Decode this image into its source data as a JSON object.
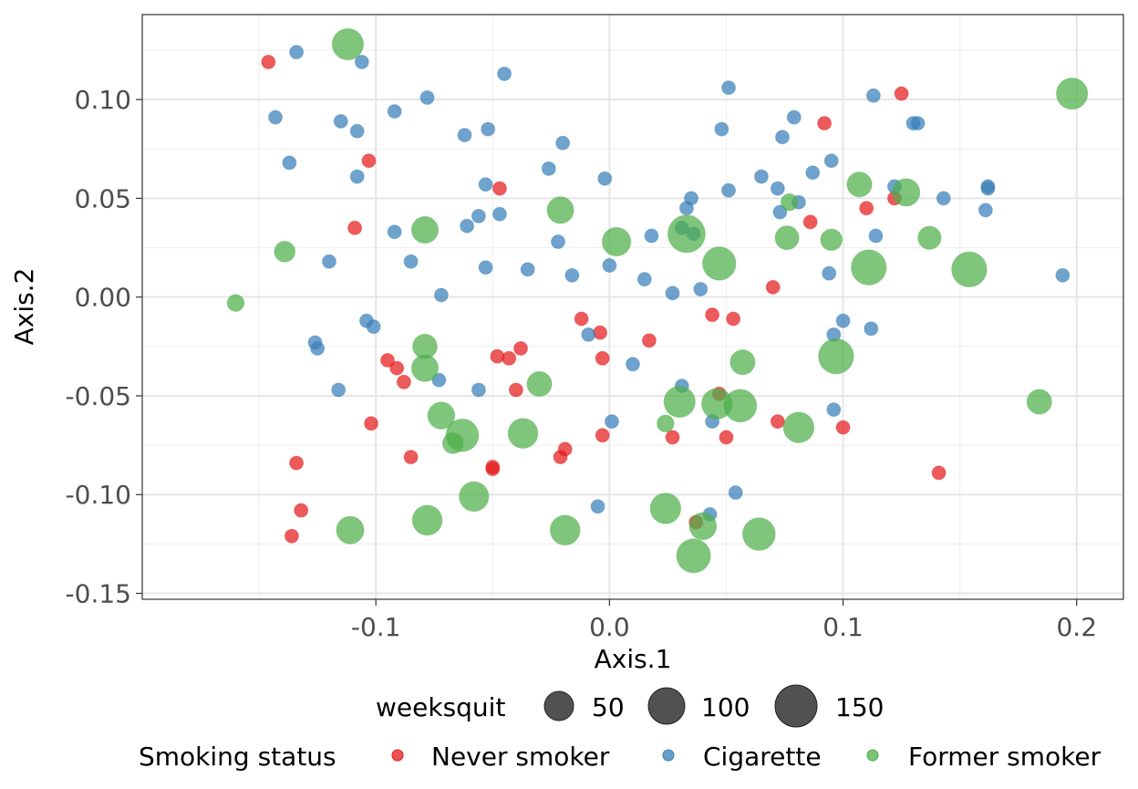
{
  "chart_data": {
    "type": "scatter",
    "xlabel": "Axis.1",
    "ylabel": "Axis.2",
    "xlim": [
      -0.2,
      0.22
    ],
    "ylim": [
      -0.153,
      0.143
    ],
    "x_ticks": [
      -0.1,
      0.0,
      0.1,
      0.2
    ],
    "x_tick_labels": [
      "-0.1",
      "0.0",
      "0.1",
      "0.2"
    ],
    "y_ticks": [
      -0.15,
      -0.1,
      -0.05,
      0.0,
      0.05,
      0.1
    ],
    "y_tick_labels": [
      "-0.15",
      "-0.10",
      "-0.05",
      "0.00",
      "0.05",
      "0.10"
    ],
    "grid": true,
    "legend_position": "bottom",
    "size_legend": {
      "title": "weeksquit",
      "entries": [
        {
          "label": "50",
          "value": 50
        },
        {
          "label": "100",
          "value": 100
        },
        {
          "label": "150",
          "value": 150
        }
      ]
    },
    "color_legend": {
      "title": "Smoking status",
      "entries": [
        {
          "label": "Never smoker",
          "color": "#e41a1c"
        },
        {
          "label": "Cigarette",
          "color": "#377eb8"
        },
        {
          "label": "Former smoker",
          "color": "#4daf4a"
        }
      ]
    },
    "series": [
      {
        "name": "Never smoker",
        "color": "#e41a1c",
        "points": [
          [
            -0.146,
            0.119
          ],
          [
            -0.103,
            0.069
          ],
          [
            -0.109,
            0.035
          ],
          [
            -0.047,
            0.055
          ],
          [
            -0.134,
            -0.084
          ],
          [
            -0.132,
            -0.108
          ],
          [
            -0.136,
            -0.121
          ],
          [
            -0.102,
            -0.064
          ],
          [
            -0.095,
            -0.032
          ],
          [
            -0.091,
            -0.036
          ],
          [
            -0.088,
            -0.043
          ],
          [
            -0.085,
            -0.081
          ],
          [
            -0.05,
            -0.086
          ],
          [
            -0.05,
            -0.087
          ],
          [
            -0.048,
            -0.03
          ],
          [
            -0.043,
            -0.031
          ],
          [
            -0.04,
            -0.047
          ],
          [
            -0.038,
            -0.026
          ],
          [
            -0.021,
            -0.081
          ],
          [
            -0.019,
            -0.077
          ],
          [
            -0.012,
            -0.011
          ],
          [
            -0.004,
            -0.018
          ],
          [
            -0.003,
            -0.031
          ],
          [
            -0.003,
            -0.07
          ],
          [
            0.017,
            -0.022
          ],
          [
            0.027,
            -0.071
          ],
          [
            0.037,
            -0.114
          ],
          [
            0.044,
            -0.009
          ],
          [
            0.047,
            -0.049
          ],
          [
            0.05,
            -0.071
          ],
          [
            0.053,
            -0.011
          ],
          [
            0.07,
            0.005
          ],
          [
            0.072,
            -0.063
          ],
          [
            0.086,
            0.038
          ],
          [
            0.092,
            0.088
          ],
          [
            0.1,
            -0.066
          ],
          [
            0.11,
            0.045
          ],
          [
            0.122,
            0.05
          ],
          [
            0.125,
            0.103
          ],
          [
            0.141,
            -0.089
          ]
        ]
      },
      {
        "name": "Cigarette",
        "color": "#377eb8",
        "points": [
          [
            -0.134,
            0.124
          ],
          [
            -0.106,
            0.119
          ],
          [
            -0.045,
            0.113
          ],
          [
            -0.143,
            0.091
          ],
          [
            -0.115,
            0.089
          ],
          [
            -0.108,
            0.084
          ],
          [
            -0.092,
            0.094
          ],
          [
            -0.078,
            0.101
          ],
          [
            -0.062,
            0.082
          ],
          [
            -0.052,
            0.085
          ],
          [
            -0.02,
            0.078
          ],
          [
            -0.137,
            0.068
          ],
          [
            -0.108,
            0.061
          ],
          [
            -0.026,
            0.065
          ],
          [
            -0.002,
            0.06
          ],
          [
            -0.053,
            0.057
          ],
          [
            -0.056,
            0.041
          ],
          [
            -0.047,
            0.042
          ],
          [
            -0.061,
            0.036
          ],
          [
            -0.092,
            0.033
          ],
          [
            -0.022,
            0.028
          ],
          [
            -0.12,
            0.018
          ],
          [
            -0.085,
            0.018
          ],
          [
            -0.053,
            0.015
          ],
          [
            -0.035,
            0.014
          ],
          [
            -0.016,
            0.011
          ],
          [
            0.0,
            0.016
          ],
          [
            -0.072,
            0.001
          ],
          [
            -0.104,
            -0.012
          ],
          [
            -0.101,
            -0.015
          ],
          [
            -0.126,
            -0.023
          ],
          [
            -0.125,
            -0.026
          ],
          [
            -0.116,
            -0.047
          ],
          [
            -0.073,
            -0.042
          ],
          [
            -0.056,
            -0.047
          ],
          [
            -0.009,
            -0.019
          ],
          [
            0.01,
            -0.034
          ],
          [
            0.001,
            -0.063
          ],
          [
            -0.005,
            -0.106
          ],
          [
            0.051,
            0.106
          ],
          [
            0.048,
            0.085
          ],
          [
            0.079,
            0.091
          ],
          [
            0.074,
            0.081
          ],
          [
            0.113,
            0.102
          ],
          [
            0.13,
            0.088
          ],
          [
            0.132,
            0.088
          ],
          [
            0.065,
            0.061
          ],
          [
            0.051,
            0.054
          ],
          [
            0.072,
            0.055
          ],
          [
            0.087,
            0.063
          ],
          [
            0.095,
            0.069
          ],
          [
            0.035,
            0.05
          ],
          [
            0.033,
            0.045
          ],
          [
            0.031,
            0.035
          ],
          [
            0.036,
            0.032
          ],
          [
            0.018,
            0.031
          ],
          [
            0.073,
            0.043
          ],
          [
            0.081,
            0.048
          ],
          [
            0.122,
            0.056
          ],
          [
            0.143,
            0.05
          ],
          [
            0.162,
            0.056
          ],
          [
            0.162,
            0.055
          ],
          [
            0.161,
            0.044
          ],
          [
            0.114,
            0.031
          ],
          [
            0.015,
            0.009
          ],
          [
            0.027,
            0.002
          ],
          [
            0.039,
            0.004
          ],
          [
            0.094,
            0.012
          ],
          [
            0.1,
            -0.012
          ],
          [
            0.096,
            -0.019
          ],
          [
            0.112,
            -0.016
          ],
          [
            0.194,
            0.011
          ],
          [
            0.031,
            -0.045
          ],
          [
            0.044,
            -0.063
          ],
          [
            0.096,
            -0.057
          ],
          [
            0.054,
            -0.099
          ],
          [
            0.043,
            -0.11
          ]
        ]
      },
      {
        "name": "Former smoker",
        "color": "#4daf4a",
        "points": [
          [
            -0.112,
            0.128,
            80
          ],
          [
            0.198,
            0.103,
            80
          ],
          [
            -0.16,
            -0.003,
            10
          ],
          [
            -0.139,
            0.023,
            22
          ],
          [
            -0.079,
            0.034,
            50
          ],
          [
            -0.021,
            0.044,
            50
          ],
          [
            0.003,
            0.028,
            62
          ],
          [
            0.033,
            0.032,
            130
          ],
          [
            0.047,
            0.017,
            95
          ],
          [
            0.077,
            0.048,
            10
          ],
          [
            0.076,
            0.03,
            35
          ],
          [
            0.095,
            0.029,
            25
          ],
          [
            0.107,
            0.057,
            40
          ],
          [
            0.127,
            0.053,
            55
          ],
          [
            0.111,
            0.015,
            110
          ],
          [
            0.137,
            0.03,
            32
          ],
          [
            0.154,
            0.014,
            110
          ],
          [
            -0.079,
            -0.025,
            38
          ],
          [
            -0.079,
            -0.036,
            50
          ],
          [
            -0.072,
            -0.06,
            52
          ],
          [
            -0.063,
            -0.07,
            90
          ],
          [
            -0.067,
            -0.074,
            22
          ],
          [
            -0.03,
            -0.044,
            40
          ],
          [
            -0.037,
            -0.069,
            70
          ],
          [
            -0.058,
            -0.101,
            68
          ],
          [
            -0.078,
            -0.113,
            70
          ],
          [
            -0.111,
            -0.118,
            55
          ],
          [
            -0.019,
            -0.118,
            70
          ],
          [
            0.024,
            -0.064,
            10
          ],
          [
            0.03,
            -0.053,
            80
          ],
          [
            0.046,
            -0.054,
            75
          ],
          [
            0.056,
            -0.055,
            90
          ],
          [
            0.057,
            -0.033,
            40
          ],
          [
            0.081,
            -0.066,
            75
          ],
          [
            0.097,
            -0.03,
            110
          ],
          [
            0.024,
            -0.107,
            75
          ],
          [
            0.04,
            -0.116,
            52
          ],
          [
            0.036,
            -0.131,
            100
          ],
          [
            0.064,
            -0.12,
            90
          ],
          [
            0.184,
            -0.053,
            40
          ]
        ]
      }
    ]
  }
}
